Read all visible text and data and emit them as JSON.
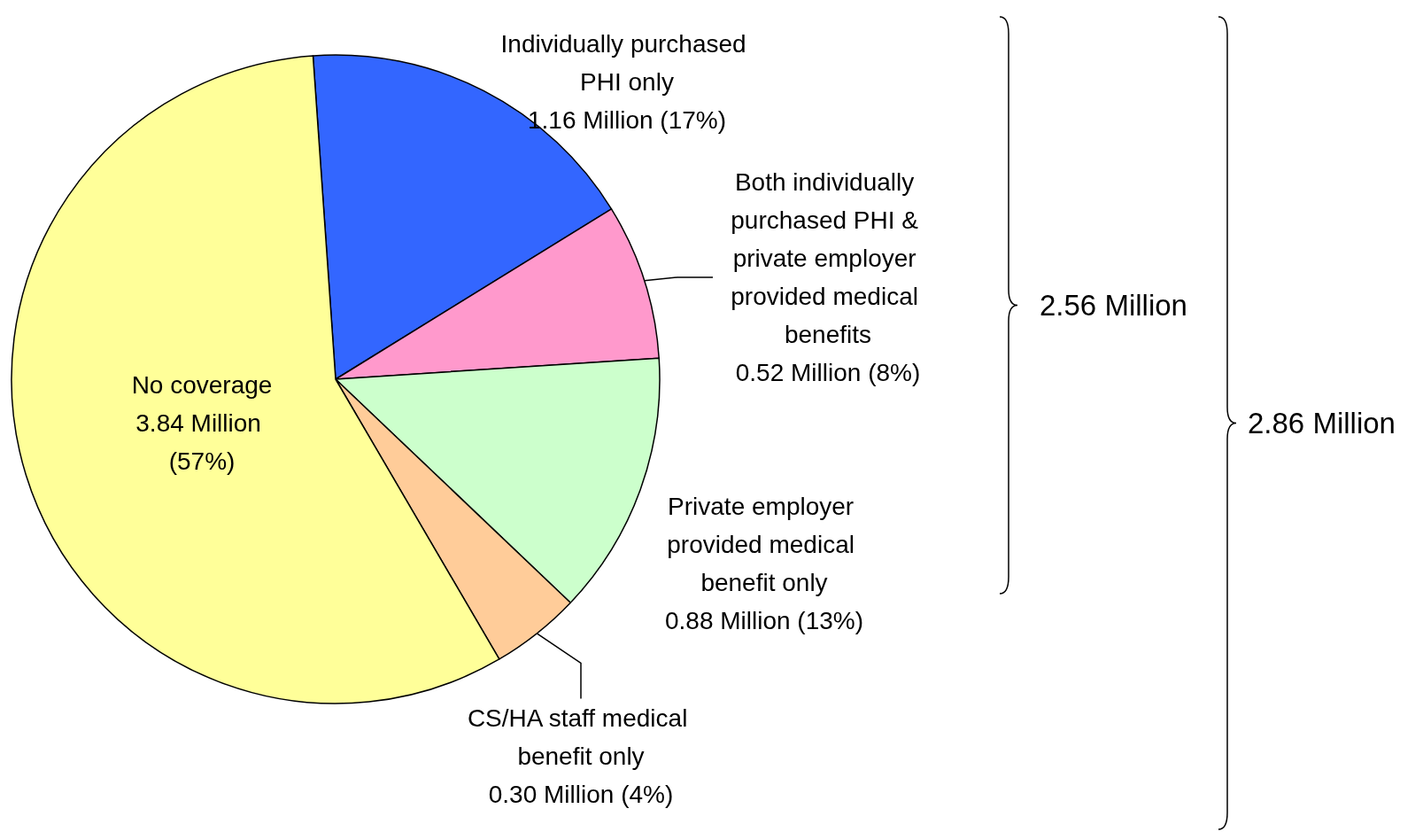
{
  "chart_data": {
    "type": "pie",
    "categories": [
      "Individually purchased PHI only",
      "Both individually purchased PHI & private employer provided medical benefits",
      "Private employer provided medical benefit only",
      "CS/HA staff medical benefit only",
      "No coverage"
    ],
    "values": [
      1.16,
      0.52,
      0.88,
      0.3,
      3.84
    ],
    "value_labels": [
      "1.16 Million (17%)",
      "0.52 Million (8%)",
      "0.88 Million (13%)",
      "0.30 Million (4%)",
      "3.84 Million (57%)"
    ],
    "colors": [
      "#3366ff",
      "#ff99cc",
      "#ccffcc",
      "#ffcc99",
      "#ffff99"
    ],
    "annotations": [
      "2.56 Million",
      "2.86 Million"
    ],
    "legend": false
  }
}
